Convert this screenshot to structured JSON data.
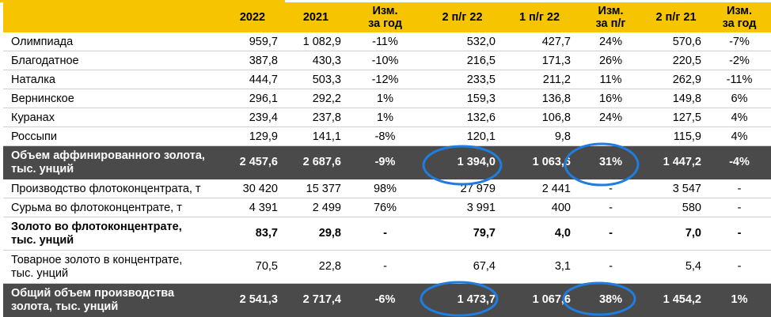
{
  "table": {
    "headers": [
      "",
      "2022",
      "2021",
      "Изм.\nза год",
      "2 п/г 22",
      "1 п/г 22",
      "Изм.\nза п/г",
      "2 п/г 21",
      "Изм.\nза год"
    ],
    "rows": [
      {
        "name": "Олимпиада",
        "values": [
          "959,7",
          "1 082,9",
          "-11%",
          "532,0",
          "427,7",
          "24%",
          "570,6",
          "-7%"
        ],
        "style": "normal"
      },
      {
        "name": "Благодатное",
        "values": [
          "387,8",
          "430,3",
          "-10%",
          "216,5",
          "171,3",
          "26%",
          "220,5",
          "-2%"
        ],
        "style": "normal"
      },
      {
        "name": "Наталка",
        "values": [
          "444,7",
          "503,3",
          "-12%",
          "233,5",
          "211,2",
          "11%",
          "262,9",
          "-11%"
        ],
        "style": "normal"
      },
      {
        "name": "Вернинское",
        "values": [
          "296,1",
          "292,2",
          "1%",
          "159,3",
          "136,8",
          "16%",
          "149,8",
          "6%"
        ],
        "style": "normal"
      },
      {
        "name": "Куранах",
        "values": [
          "239,4",
          "237,8",
          "1%",
          "132,6",
          "106,8",
          "24%",
          "127,5",
          "4%"
        ],
        "style": "normal"
      },
      {
        "name": "Россыпи",
        "values": [
          "129,9",
          "141,1",
          "-8%",
          "120,1",
          "9,8",
          "",
          "115,9",
          "4%"
        ],
        "style": "normal"
      },
      {
        "name": "Объем аффинированного золота,\nтыс. унций",
        "values": [
          "2 457,6",
          "2 687,6",
          "-9%",
          "1 394,0",
          "1 063,6",
          "31%",
          "1 447,2",
          "-4%"
        ],
        "style": "dark"
      },
      {
        "name": "Производство флотоконцентрата, т",
        "values": [
          "30 420",
          "15 377",
          "98%",
          "27 979",
          "2 441",
          "-",
          "3 547",
          "-"
        ],
        "style": "normal"
      },
      {
        "name": "Сурьма во флотоконцентрате, т",
        "values": [
          "4 391",
          "2 499",
          "76%",
          "3 991",
          "400",
          "-",
          "580",
          "-"
        ],
        "style": "normal"
      },
      {
        "name": "Золото во флотоконцентрате,\nтыс. унций",
        "values": [
          "83,7",
          "29,8",
          "-",
          "79,7",
          "4,0",
          "-",
          "7,0",
          "-"
        ],
        "style": "bold"
      },
      {
        "name": "Товарное золото в концентрате,\nтыс. унций",
        "values": [
          "70,5",
          "22,8",
          "-",
          "67,4",
          "3,1",
          "-",
          "5,4",
          "-"
        ],
        "style": "normal"
      },
      {
        "name": "Общий объем производства\nзолота, тыс. унций",
        "values": [
          "2 541,3",
          "2 717,4",
          "-6%",
          "1 473,7",
          "1 067,6",
          "38%",
          "1 454,2",
          "1%"
        ],
        "style": "dark"
      }
    ]
  },
  "annotation_color": "#1f7de0",
  "highlight_color": "#f6c400"
}
